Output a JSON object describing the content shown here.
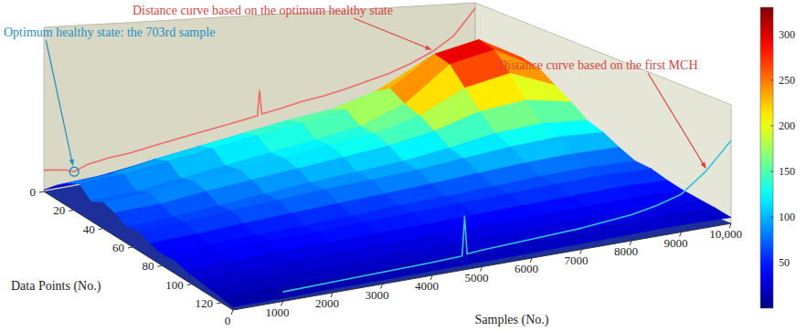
{
  "chart_data": {
    "type": "surface",
    "xlabel": "Data Points (No.)",
    "xlim": [
      0,
      128
    ],
    "xticks": [
      0,
      20,
      40,
      60,
      80,
      100,
      120
    ],
    "ylabel": "Samples (No.)",
    "ylim": [
      0,
      10000
    ],
    "yticks": [
      0,
      1000,
      2000,
      3000,
      4000,
      5000,
      6000,
      7000,
      8000,
      9000,
      {
        "value": 10000,
        "label": "10,000"
      }
    ],
    "surface": {
      "x": [
        0,
        8,
        16,
        24,
        32,
        40,
        48,
        56,
        64,
        72,
        80,
        88,
        96,
        104,
        112,
        120,
        128
      ],
      "y": [
        0,
        1000,
        2000,
        3000,
        4000,
        5000,
        6000,
        7000,
        8000,
        9000,
        10000
      ],
      "z": [
        [
          5,
          40,
          70,
          90,
          60,
          80,
          70,
          50,
          60,
          45,
          35,
          40,
          30,
          25,
          20,
          15,
          10
        ],
        [
          5,
          45,
          75,
          95,
          65,
          85,
          72,
          55,
          62,
          48,
          38,
          42,
          32,
          26,
          22,
          16,
          10
        ],
        [
          5,
          60,
          95,
          110,
          80,
          95,
          85,
          65,
          70,
          55,
          42,
          45,
          35,
          28,
          24,
          18,
          12
        ],
        [
          6,
          70,
          110,
          125,
          95,
          105,
          95,
          75,
          78,
          60,
          45,
          48,
          38,
          30,
          25,
          20,
          12
        ],
        [
          6,
          80,
          125,
          140,
          110,
          115,
          105,
          85,
          85,
          65,
          50,
          52,
          40,
          32,
          27,
          22,
          14
        ],
        [
          8,
          90,
          140,
          155,
          125,
          130,
          115,
          92,
          90,
          70,
          55,
          55,
          42,
          34,
          28,
          24,
          15
        ],
        [
          8,
          100,
          150,
          170,
          140,
          140,
          125,
          100,
          95,
          75,
          58,
          58,
          45,
          36,
          30,
          25,
          16
        ],
        [
          10,
          130,
          180,
          210,
          185,
          170,
          145,
          115,
          105,
          82,
          62,
          62,
          48,
          38,
          32,
          26,
          18
        ],
        [
          12,
          170,
          240,
          290,
          280,
          230,
          180,
          135,
          115,
          88,
          68,
          65,
          50,
          40,
          34,
          28,
          20
        ],
        [
          12,
          180,
          260,
          310,
          300,
          250,
          190,
          140,
          120,
          90,
          70,
          68,
          52,
          42,
          35,
          30,
          22
        ],
        [
          10,
          150,
          200,
          230,
          220,
          190,
          160,
          125,
          110,
          85,
          65,
          62,
          48,
          38,
          32,
          26,
          18
        ]
      ]
    },
    "colorbar": {
      "lim": [
        0,
        330
      ],
      "ticks": [
        50,
        100,
        150,
        200,
        250,
        300
      ]
    },
    "distance_lim": [
      0,
      100
    ],
    "series": [
      {
        "color": "#ee6b6b",
        "x": [
          0,
          500,
          703,
          1000,
          1500,
          2000,
          2500,
          3000,
          3500,
          4000,
          4500,
          4950,
          5000,
          5050,
          5500,
          6000,
          6500,
          7000,
          7500,
          8000,
          8500,
          9000,
          9500,
          10000
        ],
        "values": [
          13,
          11,
          9,
          12,
          14,
          15,
          17,
          19,
          21,
          23,
          25,
          27,
          45,
          28,
          30,
          33,
          35,
          38,
          42,
          46,
          52,
          60,
          72,
          95
        ]
      },
      {
        "color": "#30c4dc",
        "x": [
          1000,
          2000,
          3000,
          4000,
          4600,
          4650,
          4700,
          5000,
          6000,
          7000,
          8000,
          8500,
          9000,
          9500,
          10000
        ],
        "values": [
          8,
          9,
          10,
          11,
          12,
          45,
          13,
          14,
          16,
          18,
          22,
          26,
          32,
          48,
          70
        ]
      }
    ],
    "annotations": [
      {
        "text": "Distance curve based on the optimum healthy state",
        "color": "#d9453f",
        "series": 0,
        "x": 9000
      },
      {
        "text": "Optimum healthy state: the 703rd sample",
        "color": "#1f8fc4",
        "series": 0,
        "x": 703
      },
      {
        "text": "Distance curve based on the first MCH",
        "color": "#d9453f",
        "series": 1,
        "x": 9500
      }
    ]
  }
}
